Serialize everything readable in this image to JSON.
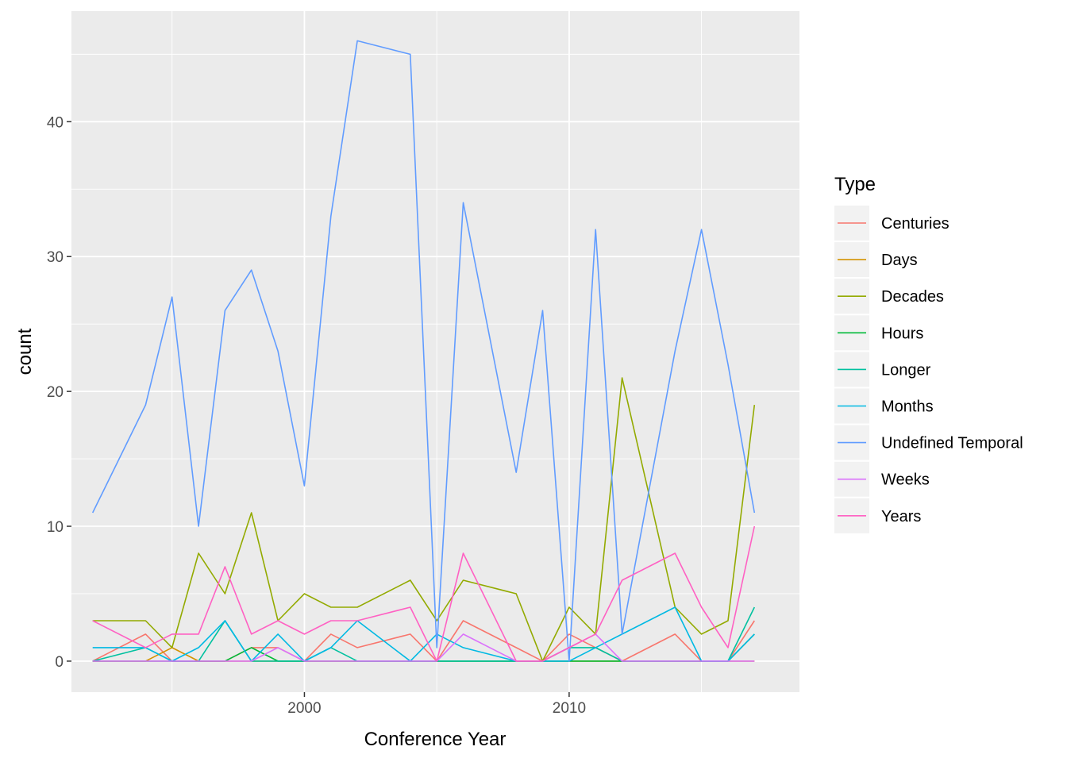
{
  "chart_data": {
    "type": "line",
    "title": "",
    "xlabel": "Conference Year",
    "ylabel": "count",
    "xlim": [
      1991.2,
      2018.7
    ],
    "ylim": [
      -2.3,
      48.2
    ],
    "x_ticks": [
      2000,
      2010
    ],
    "y_ticks": [
      0,
      10,
      20,
      30,
      40
    ],
    "grid": true,
    "legend": {
      "title": "Type",
      "position": "right"
    },
    "x": [
      1992,
      1994,
      1995,
      1996,
      1997,
      1998,
      1999,
      2000,
      2001,
      2002,
      2004,
      2005,
      2006,
      2008,
      2009,
      2010,
      2011,
      2012,
      2014,
      2015,
      2016,
      2017
    ],
    "series": [
      {
        "name": "Centuries",
        "color": "#F8766D",
        "values": [
          0,
          2,
          0,
          0,
          0,
          1,
          1,
          0,
          2,
          1,
          2,
          0,
          3,
          1,
          0,
          2,
          1,
          0,
          2,
          0,
          0,
          3
        ]
      },
      {
        "name": "Days",
        "color": "#D39200",
        "values": [
          0,
          0,
          1,
          0,
          0,
          0,
          0,
          0,
          0,
          0,
          0,
          0,
          0,
          0,
          0,
          0,
          0,
          0,
          0,
          0,
          0,
          0
        ]
      },
      {
        "name": "Decades",
        "color": "#93AA00",
        "values": [
          3,
          3,
          1,
          8,
          5,
          11,
          3,
          5,
          4,
          4,
          6,
          3,
          6,
          5,
          0,
          4,
          2,
          21,
          4,
          2,
          3,
          19
        ]
      },
      {
        "name": "Hours",
        "color": "#00BA38",
        "values": [
          0,
          0,
          0,
          0,
          0,
          1,
          0,
          0,
          0,
          0,
          0,
          0,
          0,
          0,
          0,
          0,
          0,
          0,
          0,
          0,
          0,
          2
        ]
      },
      {
        "name": "Longer",
        "color": "#00C19F",
        "values": [
          0,
          1,
          0,
          0,
          3,
          0,
          0,
          0,
          1,
          0,
          0,
          0,
          0,
          0,
          0,
          1,
          1,
          0,
          0,
          0,
          0,
          4
        ]
      },
      {
        "name": "Months",
        "color": "#00B9E3",
        "values": [
          1,
          1,
          0,
          1,
          3,
          0,
          2,
          0,
          1,
          3,
          0,
          2,
          1,
          0,
          0,
          0,
          1,
          2,
          4,
          0,
          0,
          2
        ]
      },
      {
        "name": "Undefined Temporal",
        "color": "#619CFF",
        "values": [
          11,
          19,
          27,
          10,
          26,
          29,
          23,
          13,
          33,
          46,
          45,
          1,
          34,
          14,
          26,
          0,
          32,
          2,
          23,
          32,
          22,
          11
        ]
      },
      {
        "name": "Weeks",
        "color": "#DB72FB",
        "values": [
          0,
          0,
          0,
          0,
          0,
          0,
          1,
          0,
          0,
          0,
          0,
          0,
          2,
          0,
          0,
          1,
          2,
          0,
          0,
          0,
          0,
          0
        ]
      },
      {
        "name": "Years",
        "color": "#FF61C3",
        "values": [
          3,
          1,
          2,
          2,
          7,
          2,
          3,
          2,
          3,
          3,
          4,
          0,
          8,
          0,
          0,
          1,
          2,
          6,
          8,
          4,
          1,
          10
        ]
      }
    ]
  }
}
